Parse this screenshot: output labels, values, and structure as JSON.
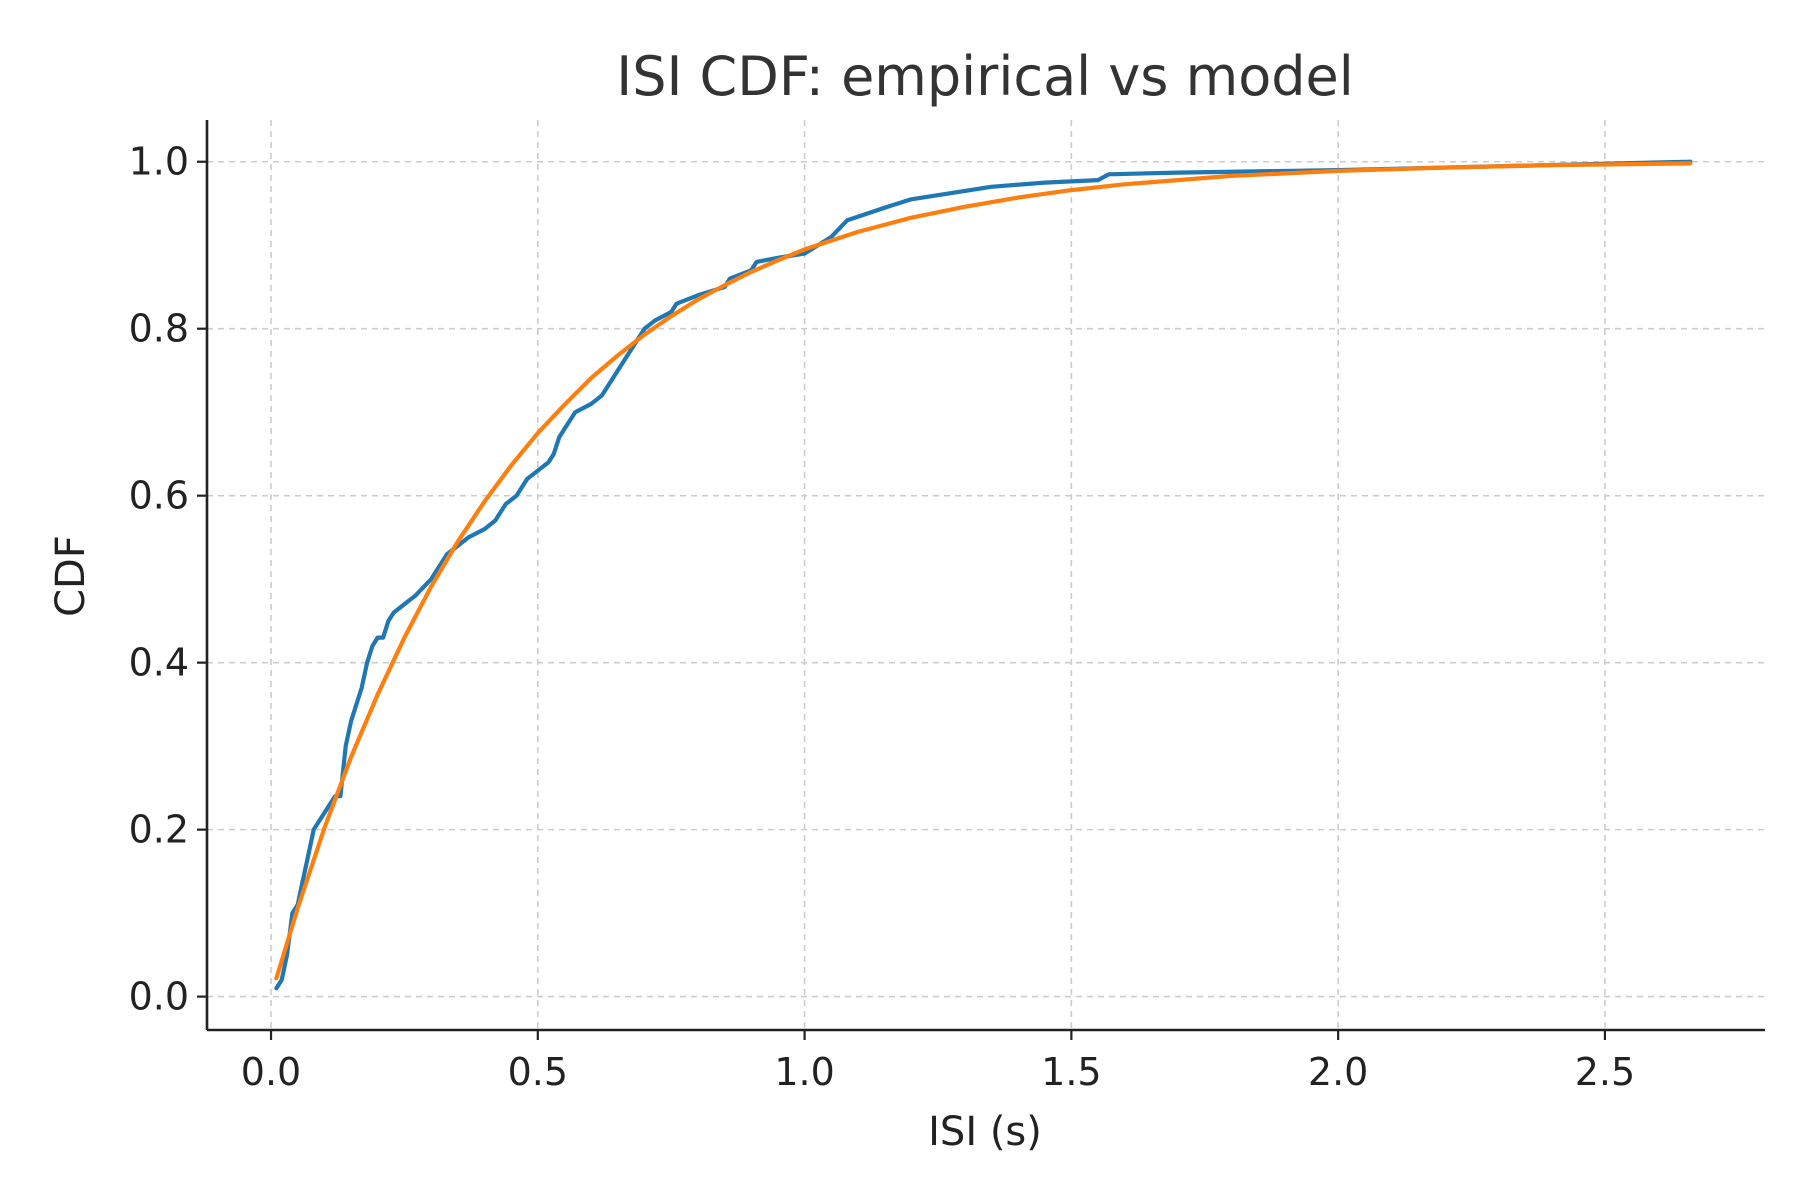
{
  "chart_data": {
    "type": "line",
    "title": "ISI CDF: empirical vs model",
    "xlabel": "ISI (s)",
    "ylabel": "CDF",
    "xlim": [
      -0.12,
      2.8
    ],
    "ylim": [
      -0.04,
      1.05
    ],
    "xticks": [
      0.0,
      0.5,
      1.0,
      1.5,
      2.0,
      2.5
    ],
    "xtick_labels": [
      "0.0",
      "0.5",
      "1.0",
      "1.5",
      "2.0",
      "2.5"
    ],
    "yticks": [
      0.0,
      0.2,
      0.4,
      0.6,
      0.8,
      1.0
    ],
    "ytick_labels": [
      "0.0",
      "0.2",
      "0.4",
      "0.6",
      "0.8",
      "1.0"
    ],
    "grid": true,
    "legend": "none",
    "series": [
      {
        "color": "#1f77b4",
        "x": [
          0.01,
          0.02,
          0.03,
          0.04,
          0.05,
          0.06,
          0.07,
          0.08,
          0.09,
          0.1,
          0.11,
          0.12,
          0.13,
          0.14,
          0.15,
          0.16,
          0.17,
          0.18,
          0.19,
          0.2,
          0.21,
          0.22,
          0.23,
          0.25,
          0.27,
          0.3,
          0.33,
          0.35,
          0.37,
          0.4,
          0.42,
          0.44,
          0.46,
          0.48,
          0.5,
          0.52,
          0.53,
          0.54,
          0.55,
          0.57,
          0.6,
          0.62,
          0.63,
          0.65,
          0.67,
          0.7,
          0.72,
          0.75,
          0.76,
          0.8,
          0.85,
          0.86,
          0.9,
          0.91,
          0.95,
          1.0,
          1.05,
          1.08,
          1.15,
          1.2,
          1.35,
          1.45,
          1.55,
          1.57,
          1.7,
          2.0,
          2.66
        ],
        "y": [
          0.01,
          0.02,
          0.05,
          0.1,
          0.11,
          0.14,
          0.17,
          0.2,
          0.21,
          0.22,
          0.23,
          0.24,
          0.24,
          0.3,
          0.33,
          0.35,
          0.37,
          0.4,
          0.42,
          0.43,
          0.43,
          0.45,
          0.46,
          0.47,
          0.48,
          0.5,
          0.53,
          0.54,
          0.55,
          0.56,
          0.57,
          0.59,
          0.6,
          0.62,
          0.63,
          0.64,
          0.65,
          0.67,
          0.68,
          0.7,
          0.71,
          0.72,
          0.73,
          0.75,
          0.77,
          0.8,
          0.81,
          0.82,
          0.83,
          0.84,
          0.85,
          0.86,
          0.87,
          0.88,
          0.885,
          0.89,
          0.91,
          0.93,
          0.945,
          0.955,
          0.97,
          0.975,
          0.978,
          0.985,
          0.987,
          0.99,
          1.0
        ]
      },
      {
        "color": "#ff7f0e",
        "model_rate": 2.25,
        "x": [
          0.01,
          0.05,
          0.1,
          0.15,
          0.2,
          0.25,
          0.3,
          0.35,
          0.4,
          0.45,
          0.5,
          0.55,
          0.6,
          0.65,
          0.7,
          0.75,
          0.8,
          0.85,
          0.9,
          0.95,
          1.0,
          1.1,
          1.2,
          1.3,
          1.4,
          1.5,
          1.6,
          1.8,
          2.0,
          2.2,
          2.4,
          2.66
        ],
        "y": [
          0.022,
          0.106,
          0.202,
          0.287,
          0.362,
          0.43,
          0.491,
          0.545,
          0.593,
          0.636,
          0.675,
          0.709,
          0.741,
          0.768,
          0.793,
          0.815,
          0.835,
          0.852,
          0.868,
          0.882,
          0.895,
          0.916,
          0.933,
          0.946,
          0.957,
          0.966,
          0.973,
          0.983,
          0.989,
          0.993,
          0.996,
          0.998
        ]
      }
    ]
  }
}
